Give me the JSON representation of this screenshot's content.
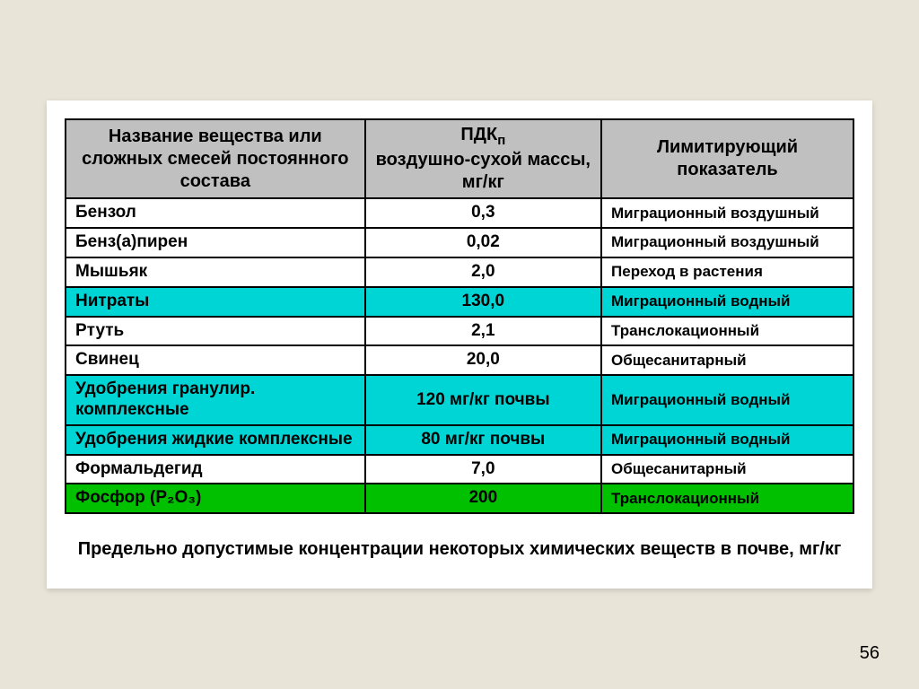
{
  "table": {
    "header": {
      "col1": "Название вещества или сложных смесей постоянного состава",
      "col2_line1": "ПДК",
      "col2_sub": "п",
      "col2_line2": "воздушно-сухой массы, мг/кг",
      "col3": "Лимитирующий показатель"
    },
    "colors": {
      "header_bg": "#c0c0c0",
      "white": "#ffffff",
      "cyan": "#00d5d5",
      "green": "#00c000"
    },
    "col_widths": [
      "38%",
      "30%",
      "32%"
    ],
    "rows": [
      {
        "name": "Бензол",
        "value": "0,3",
        "indicator": "Миграционный воздушный",
        "bg": "#ffffff"
      },
      {
        "name": "Бенз(а)пирен",
        "value": "0,02",
        "indicator": "Миграционный воздушный",
        "bg": "#ffffff"
      },
      {
        "name": "Мышьяк",
        "value": "2,0",
        "indicator": "Переход в растения",
        "bg": "#ffffff"
      },
      {
        "name": "Нитраты",
        "value": "130,0",
        "indicator": "Миграционный водный",
        "bg": "#00d5d5"
      },
      {
        "name": "Ртуть",
        "value": "2,1",
        "indicator": "Транслокационный",
        "bg": "#ffffff"
      },
      {
        "name": "Свинец",
        "value": "20,0",
        "indicator": "Общесанитарный",
        "bg": "#ffffff"
      },
      {
        "name": "Удобрения гранулир. комплексные",
        "value": "120 мг/кг почвы",
        "indicator": "Миграционный водный",
        "bg": "#00d5d5"
      },
      {
        "name": "Удобрения жидкие комплексные",
        "value": "80 мг/кг почвы",
        "indicator": "Миграционный водный",
        "bg": "#00d5d5"
      },
      {
        "name": "Формальдегид",
        "value": "7,0",
        "indicator": "Общесанитарный",
        "bg": "#ffffff"
      },
      {
        "name": "Фосфор (P₂O₃)",
        "value": "200",
        "indicator": "Транслокационный",
        "bg": "#00c000"
      }
    ]
  },
  "caption": "Предельно допустимые концентрации некоторых химических веществ в почве, мг/кг",
  "page_number": "56"
}
